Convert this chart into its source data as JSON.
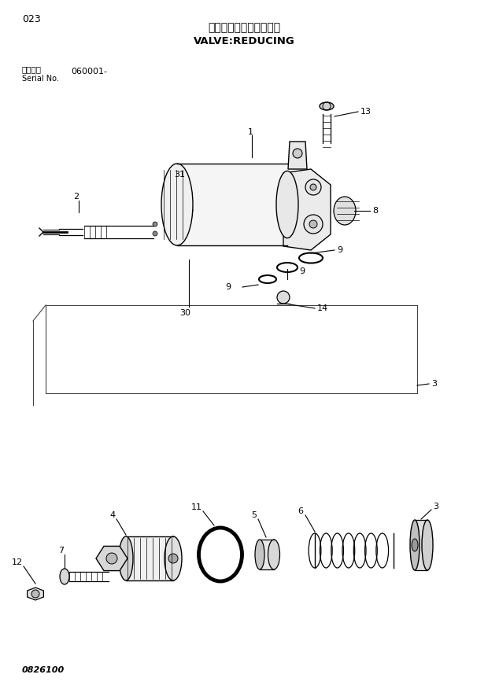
{
  "title_jp": "バルブ：レデューシング",
  "title_en": "VALVE:REDUCING",
  "part_number": "023",
  "serial_label": "適用号機",
  "serial_en": "Serial No.",
  "serial_no": "060001-",
  "doc_number": "0826100",
  "bg_color": "#ffffff",
  "line_color": "#000000",
  "text_color": "#000000",
  "fig_width": 6.2,
  "fig_height": 8.76,
  "dpi": 100
}
